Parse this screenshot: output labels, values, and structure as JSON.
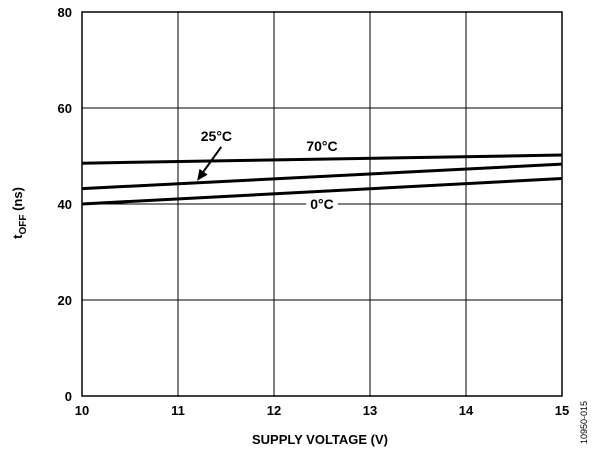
{
  "chart_data": {
    "type": "line",
    "xlabel": "SUPPLY VOLTAGE (V)",
    "ylabel": {
      "main": "t",
      "sub": "OFF",
      "unit": " (ns)"
    },
    "xlim": [
      10,
      15
    ],
    "ylim": [
      0,
      80
    ],
    "xticks": [
      "10",
      "11",
      "12",
      "13",
      "14",
      "15"
    ],
    "yticks": [
      "0",
      "20",
      "40",
      "60",
      "80"
    ],
    "grid": true,
    "series": [
      {
        "name": "70°C",
        "x": [
          10,
          15
        ],
        "values": [
          48.5,
          50.2
        ]
      },
      {
        "name": "25°C",
        "x": [
          10,
          15
        ],
        "values": [
          43.2,
          48.3
        ]
      },
      {
        "name": "0°C",
        "x": [
          10,
          15
        ],
        "values": [
          40.0,
          45.3
        ]
      }
    ],
    "annotations": {
      "figure_id": "10950-015"
    }
  }
}
